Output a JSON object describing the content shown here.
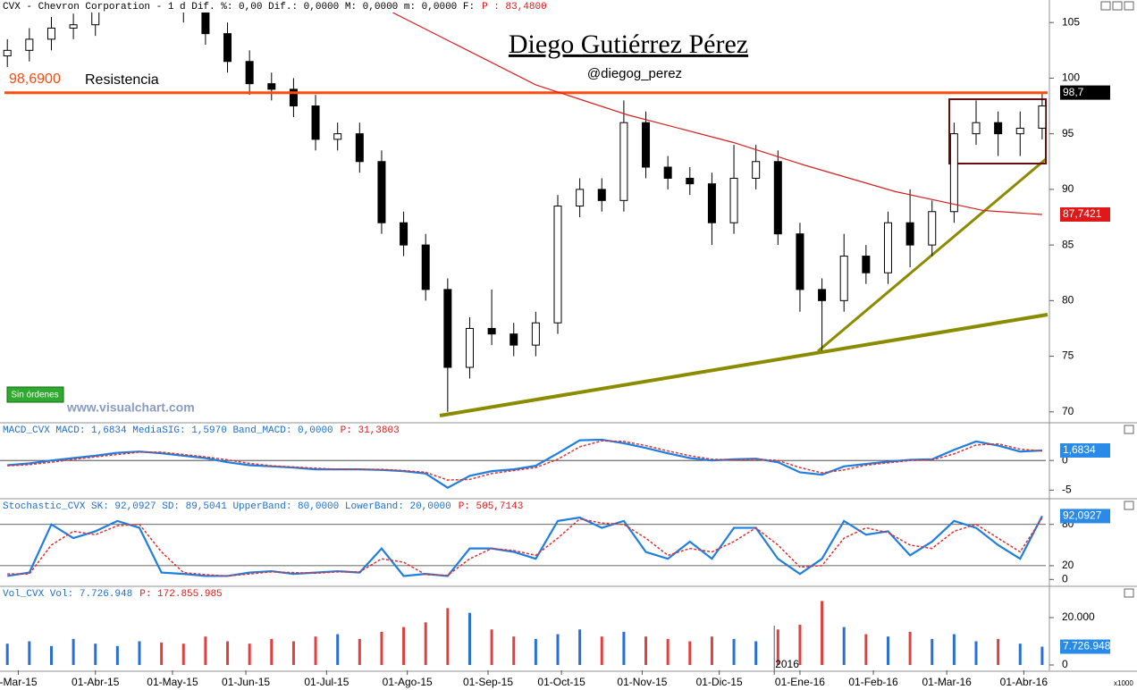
{
  "header": {
    "text": "CVX - Chevron Corporation -   1 d Dif. %: 0,00 Dif.: 0,0000 M: 0,0000 m: 0,0000 F:",
    "p": "P : 83,4800"
  },
  "chart_data": [
    {
      "type": "candlestick",
      "title": "Diego Gutiérrez Pérez",
      "subtitle": "@diegog_perez",
      "watermark": "www.visualchart.com",
      "button": "Sin órdenes",
      "xlim": [
        0,
        285
      ],
      "ylim": [
        69.1,
        105.9
      ],
      "yticks": [
        70,
        75,
        80,
        85,
        90,
        95,
        100,
        105
      ],
      "up_color": "#ffffff",
      "down_color": "#000000",
      "x": [
        2,
        8,
        14,
        20,
        26,
        32,
        38,
        44,
        50,
        56,
        62,
        68,
        74,
        80,
        86,
        92,
        98,
        104,
        110,
        116,
        122,
        128,
        134,
        140,
        146,
        152,
        158,
        164,
        170,
        176,
        182,
        188,
        194,
        200,
        206,
        212,
        218,
        224,
        230,
        236,
        242,
        248,
        254,
        260,
        266,
        272,
        278,
        284
      ],
      "open": [
        102,
        102.5,
        103.5,
        104.5,
        104.8,
        107,
        108,
        108,
        107,
        106,
        104,
        101.5,
        99.5,
        99,
        97.5,
        94.5,
        95,
        92.5,
        87,
        85,
        81,
        74,
        77.5,
        77,
        76,
        78,
        88.5,
        90,
        89,
        96,
        92,
        91,
        90.5,
        87,
        91,
        92.5,
        86,
        81,
        80,
        84,
        82.5,
        87,
        85,
        88,
        95,
        96,
        95,
        95.5
      ],
      "high": [
        103.5,
        104.5,
        105.5,
        105.8,
        108,
        109,
        109,
        109,
        108,
        107,
        105,
        102.5,
        100.5,
        100,
        98.5,
        96,
        96,
        93.5,
        88,
        86,
        82,
        78.5,
        81,
        78,
        79,
        89.5,
        91,
        91,
        98,
        97,
        93,
        92,
        91.5,
        94,
        94,
        93.5,
        87,
        82,
        86,
        85,
        88,
        90,
        89,
        96,
        98,
        97,
        97,
        98.7
      ],
      "low": [
        101,
        101.5,
        102.5,
        103.5,
        103.8,
        106,
        107,
        106,
        105,
        103,
        100.5,
        98.5,
        98,
        96.5,
        93.5,
        93.5,
        91.5,
        86,
        84,
        80,
        70,
        73,
        76,
        75,
        75,
        77,
        87.5,
        88,
        88,
        91,
        90,
        89.5,
        85,
        86,
        90,
        85,
        79,
        75.5,
        79,
        81.5,
        81.5,
        83,
        84,
        87,
        94,
        93,
        93,
        94.5
      ],
      "close": [
        102.5,
        103.5,
        104.5,
        104.8,
        107,
        108,
        108,
        107,
        106,
        104,
        101.5,
        99.5,
        99,
        97.5,
        94.5,
        95,
        92.5,
        87,
        85,
        81,
        74,
        77.5,
        77,
        76,
        78,
        88.5,
        90,
        89,
        96,
        92,
        91,
        90.5,
        87,
        91,
        92.5,
        86,
        81,
        80,
        84,
        82.5,
        87,
        85,
        88,
        95,
        96,
        95,
        95.5,
        97.5
      ],
      "moving_average": {
        "color": "#d42020",
        "x": [
          107,
          146,
          171,
          200,
          219,
          244,
          268,
          284
        ],
        "values": [
          105.9,
          99.4,
          96.7,
          94.2,
          92.2,
          89.8,
          88.1,
          87.7421
        ]
      },
      "resistance": {
        "value": 98.69,
        "label": "98,6900",
        "name": "Resistencia",
        "color": "#ff4a10"
      },
      "value_boxes": [
        {
          "value": 98.7,
          "label": "98,7",
          "color": "#000000"
        },
        {
          "value": 87.7421,
          "label": "87,7421",
          "color": "#e01818"
        }
      ]
    },
    {
      "type": "line",
      "header": "MACD_CVX MACD: 1,6834 MediaSIG: 1,5970 Band_MACD: 0,0000",
      "header_p": "P: 31,3803",
      "xlim": [
        0,
        285
      ],
      "ylim": [
        -6.3,
        6.2
      ],
      "yticks": [
        0,
        -5
      ],
      "bands": [
        0
      ],
      "x": [
        2,
        8,
        14,
        20,
        26,
        32,
        38,
        44,
        50,
        56,
        62,
        68,
        74,
        80,
        86,
        92,
        98,
        104,
        110,
        116,
        122,
        128,
        134,
        140,
        146,
        152,
        158,
        164,
        170,
        176,
        182,
        188,
        194,
        200,
        206,
        212,
        218,
        224,
        230,
        236,
        242,
        248,
        254,
        260,
        266,
        272,
        278,
        284
      ],
      "series": [
        {
          "color": "#1e7fe0",
          "values": [
            -0.8,
            -0.5,
            0,
            0.4,
            0.8,
            1.3,
            1.5,
            1.2,
            0.8,
            0.4,
            -0.3,
            -0.8,
            -1.0,
            -1.2,
            -1.5,
            -1.5,
            -1.5,
            -1.6,
            -1.8,
            -2.2,
            -4.6,
            -2.6,
            -1.8,
            -1.5,
            -0.9,
            1.2,
            3.4,
            3.5,
            2.9,
            2.1,
            1.2,
            0.4,
            0,
            0.2,
            0.3,
            -0.3,
            -2.0,
            -2.4,
            -1.0,
            -0.6,
            -0.2,
            0.1,
            0.2,
            1.8,
            3.2,
            2.5,
            1.5,
            1.6834
          ]
        },
        {
          "color": "#e03030",
          "dash": true,
          "values": [
            -0.9,
            -0.7,
            -0.3,
            0.2,
            0.6,
            1.0,
            1.4,
            1.4,
            1.0,
            0.6,
            0.1,
            -0.5,
            -0.9,
            -1.1,
            -1.3,
            -1.5,
            -1.5,
            -1.5,
            -1.7,
            -2.0,
            -3.3,
            -3.2,
            -2.2,
            -1.7,
            -1.2,
            0.2,
            2.3,
            3.3,
            3.2,
            2.5,
            1.6,
            0.8,
            0.2,
            0.1,
            0.2,
            0.0,
            -1.2,
            -2.1,
            -1.6,
            -0.8,
            -0.4,
            0.0,
            0.1,
            1.1,
            2.6,
            2.8,
            1.9,
            1.597
          ]
        }
      ],
      "value_boxes": [
        {
          "value": 1.6834,
          "label": "1,6834",
          "color": "#2a8ae8"
        }
      ]
    },
    {
      "type": "line",
      "header": "Stochastic_CVX SK: 92,0927 SD: 89,5041 UpperBand: 80,0000 LowerBand: 20,0000",
      "header_p": "P: 505,7143",
      "xlim": [
        0,
        285
      ],
      "ylim": [
        -8.7,
        116
      ],
      "yticks": [
        0,
        20,
        80
      ],
      "bands": [
        80,
        20
      ],
      "x": [
        2,
        8,
        14,
        20,
        26,
        32,
        38,
        44,
        50,
        56,
        62,
        68,
        74,
        80,
        86,
        92,
        98,
        104,
        110,
        116,
        122,
        128,
        134,
        140,
        146,
        152,
        158,
        164,
        170,
        176,
        182,
        188,
        194,
        200,
        206,
        212,
        218,
        224,
        230,
        236,
        242,
        248,
        254,
        260,
        266,
        272,
        278,
        284
      ],
      "series": [
        {
          "color": "#1e7fe0",
          "values": [
            5,
            10,
            80,
            60,
            70,
            85,
            75,
            10,
            8,
            5,
            5,
            10,
            12,
            8,
            10,
            12,
            10,
            45,
            5,
            8,
            5,
            45,
            45,
            40,
            30,
            85,
            90,
            75,
            85,
            40,
            30,
            55,
            30,
            75,
            75,
            30,
            8,
            30,
            85,
            65,
            70,
            35,
            55,
            85,
            75,
            50,
            30,
            92.0927
          ]
        },
        {
          "color": "#e03030",
          "dash": true,
          "values": [
            8,
            8,
            50,
            70,
            65,
            78,
            80,
            40,
            10,
            7,
            5,
            8,
            11,
            10,
            9,
            11,
            11,
            30,
            25,
            7,
            6,
            30,
            45,
            42,
            35,
            60,
            88,
            82,
            80,
            60,
            35,
            45,
            40,
            55,
            75,
            50,
            18,
            20,
            60,
            75,
            68,
            50,
            45,
            70,
            80,
            60,
            40,
            89.5041
          ]
        }
      ],
      "value_boxes": [
        {
          "value": 92.0927,
          "label": "92,0927",
          "color": "#2a8ae8"
        }
      ]
    },
    {
      "type": "bar",
      "header": "Vol_CVX Vol: 7.726.948",
      "header_p": "P: 172.855.985",
      "unit": "x1000",
      "xlim": [
        0,
        285
      ],
      "ylim": [
        -2264,
        32830
      ],
      "yticks": [
        0,
        {
          "value": 20000,
          "label": "20.000"
        }
      ],
      "up_color": "#2a6fd6",
      "down_color": "#e04040",
      "x": [
        2,
        8,
        14,
        20,
        26,
        32,
        38,
        44,
        50,
        56,
        62,
        68,
        74,
        80,
        86,
        92,
        98,
        104,
        110,
        116,
        122,
        128,
        134,
        140,
        146,
        152,
        158,
        164,
        170,
        176,
        182,
        188,
        194,
        200,
        206,
        212,
        218,
        224,
        230,
        236,
        242,
        248,
        254,
        260,
        266,
        272,
        278,
        284
      ],
      "values": [
        9000,
        10000,
        8000,
        11000,
        9000,
        8000,
        10000,
        9500,
        9000,
        12000,
        10000,
        9000,
        11000,
        10000,
        12000,
        13000,
        11000,
        14000,
        16000,
        18000,
        24000,
        22000,
        15000,
        12000,
        11000,
        13000,
        15000,
        12000,
        14000,
        12000,
        11000,
        10000,
        12000,
        11000,
        10000,
        15000,
        17000,
        27000,
        16000,
        13000,
        12000,
        14000,
        11000,
        13000,
        10000,
        11000,
        9000,
        7726.948
      ],
      "value_boxes": [
        {
          "value": 7726.948,
          "label": "7.726.948",
          "color": "#2a8ae8"
        }
      ],
      "xticks": [
        {
          "value": 5,
          "label": "-Mar-15"
        },
        {
          "value": 26,
          "label": "01-Abr-15"
        },
        {
          "value": 47,
          "label": "01-May-15"
        },
        {
          "value": 67,
          "label": "01-Jun-15"
        },
        {
          "value": 89,
          "label": "01-Jul-15"
        },
        {
          "value": 111,
          "label": "01-Ago-15"
        },
        {
          "value": 133,
          "label": "01-Sep-15"
        },
        {
          "value": 153,
          "label": "01-Oct-15"
        },
        {
          "value": 175,
          "label": "01-Nov-15"
        },
        {
          "value": 196,
          "label": "01-Dic-15"
        },
        {
          "value": 218,
          "label": "01-Ene-16"
        },
        {
          "value": 238,
          "label": "01-Feb-16"
        },
        {
          "value": 258,
          "label": "01-Mar-16"
        },
        {
          "value": 279,
          "label": "01-Abr-16"
        }
      ],
      "year_label": {
        "value": 211,
        "label": "2016"
      }
    }
  ]
}
